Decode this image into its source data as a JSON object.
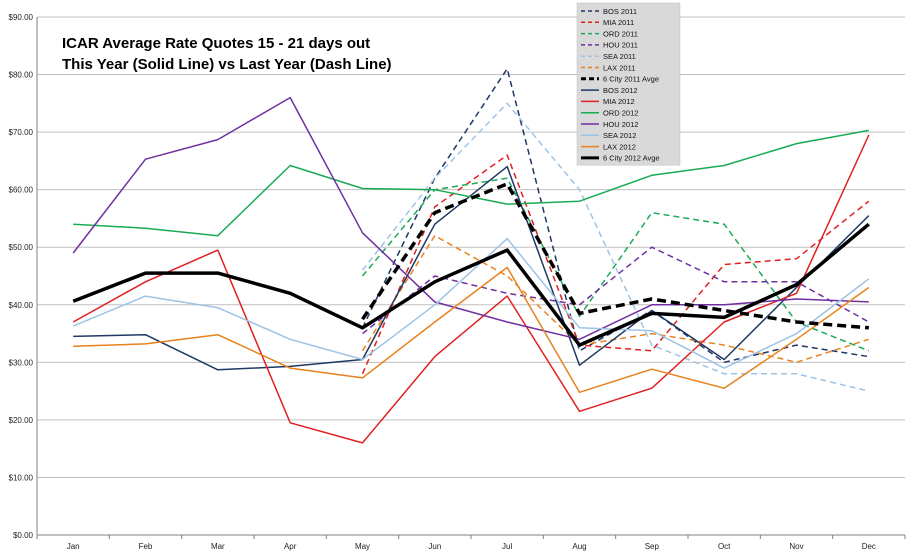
{
  "chart_data": {
    "type": "line",
    "title_line1": "ICAR Average Rate  Quotes 15 - 21 days out",
    "title_line2": "This Year (Solid Line) vs Last Year (Dash Line)",
    "categories": [
      "Jan",
      "Feb",
      "Mar",
      "Apr",
      "May",
      "Jun",
      "Jul",
      "Aug",
      "Sep",
      "Oct",
      "Nov",
      "Dec"
    ],
    "y_ticks": [
      "$0.00",
      "$10.00",
      "$20.00",
      "$30.00",
      "$40.00",
      "$50.00",
      "$60.00",
      "$70.00",
      "$80.00",
      "$90.00"
    ],
    "ylim": [
      0,
      90
    ],
    "grid": "horizontal",
    "legend_position": "top-center",
    "series": [
      {
        "name": "BOS 2011",
        "color": "#1f3864",
        "dash": true,
        "width": 1.5,
        "values": [
          null,
          null,
          null,
          null,
          36,
          62,
          81,
          32,
          39,
          30,
          33,
          31
        ]
      },
      {
        "name": "MIA 2011",
        "color": "#e02020",
        "dash": true,
        "width": 1.5,
        "values": [
          null,
          null,
          null,
          null,
          28,
          57,
          66,
          33,
          32,
          47,
          48,
          58
        ]
      },
      {
        "name": "ORD 2011",
        "color": "#1aaa55",
        "dash": true,
        "width": 1.5,
        "values": [
          null,
          null,
          null,
          null,
          45,
          60,
          62,
          38,
          56,
          54,
          37,
          32
        ]
      },
      {
        "name": "HOU 2011",
        "color": "#7030a0",
        "dash": true,
        "width": 1.5,
        "values": [
          null,
          null,
          null,
          null,
          35,
          45,
          42,
          40,
          50,
          44,
          44,
          37
        ]
      },
      {
        "name": "SEA 2011",
        "color": "#9dc3e6",
        "dash": true,
        "width": 1.5,
        "values": [
          null,
          null,
          null,
          null,
          46,
          62,
          75,
          60,
          33,
          28,
          28,
          25
        ]
      },
      {
        "name": "LAX 2011",
        "color": "#e8821e",
        "dash": true,
        "width": 1.5,
        "values": [
          null,
          null,
          null,
          null,
          32,
          52,
          45,
          33,
          35,
          33,
          30,
          34
        ]
      },
      {
        "name": "6 City 2011 Avge",
        "color": "#000000",
        "dash": true,
        "width": 3.5,
        "values": [
          null,
          null,
          null,
          null,
          37.5,
          56,
          61,
          38.5,
          41,
          39,
          37,
          36
        ]
      },
      {
        "name": "BOS 2012",
        "color": "#1f3864",
        "dash": false,
        "width": 1.5,
        "values": [
          34.5,
          34.8,
          28.7,
          29.3,
          30.5,
          54,
          64,
          29.5,
          39,
          30.5,
          43,
          55.5
        ]
      },
      {
        "name": "MIA 2012",
        "color": "#e02020",
        "dash": false,
        "width": 1.5,
        "values": [
          37,
          44,
          49.5,
          19.5,
          16,
          31,
          41.5,
          21.5,
          25.5,
          37,
          42,
          69.5
        ]
      },
      {
        "name": "ORD 2012",
        "color": "#1aaa55",
        "dash": false,
        "width": 1.5,
        "values": [
          54,
          53.3,
          52,
          64.2,
          60.2,
          60,
          57.5,
          58,
          62.5,
          64.2,
          68,
          70.3
        ]
      },
      {
        "name": "HOU 2012",
        "color": "#7030a0",
        "dash": false,
        "width": 1.5,
        "values": [
          49,
          65.3,
          68.7,
          76,
          52.5,
          40.5,
          37,
          34,
          40,
          40,
          41,
          40.5
        ]
      },
      {
        "name": "SEA 2012",
        "color": "#9dc3e6",
        "dash": false,
        "width": 1.5,
        "values": [
          36.3,
          41.5,
          39.5,
          34,
          30.5,
          40,
          51.5,
          36,
          35.5,
          29,
          35,
          44.5
        ]
      },
      {
        "name": "LAX 2012",
        "color": "#e8821e",
        "dash": false,
        "width": 1.5,
        "values": [
          32.8,
          33.2,
          34.8,
          29,
          27.3,
          37,
          46.5,
          24.8,
          28.8,
          25.5,
          34,
          43
        ]
      },
      {
        "name": "6 City 2012 Avge",
        "color": "#000000",
        "dash": false,
        "width": 3.5,
        "values": [
          40.6,
          45.5,
          45.5,
          42,
          36,
          44,
          49.5,
          33,
          38.5,
          37.8,
          43.5,
          54
        ]
      }
    ]
  }
}
